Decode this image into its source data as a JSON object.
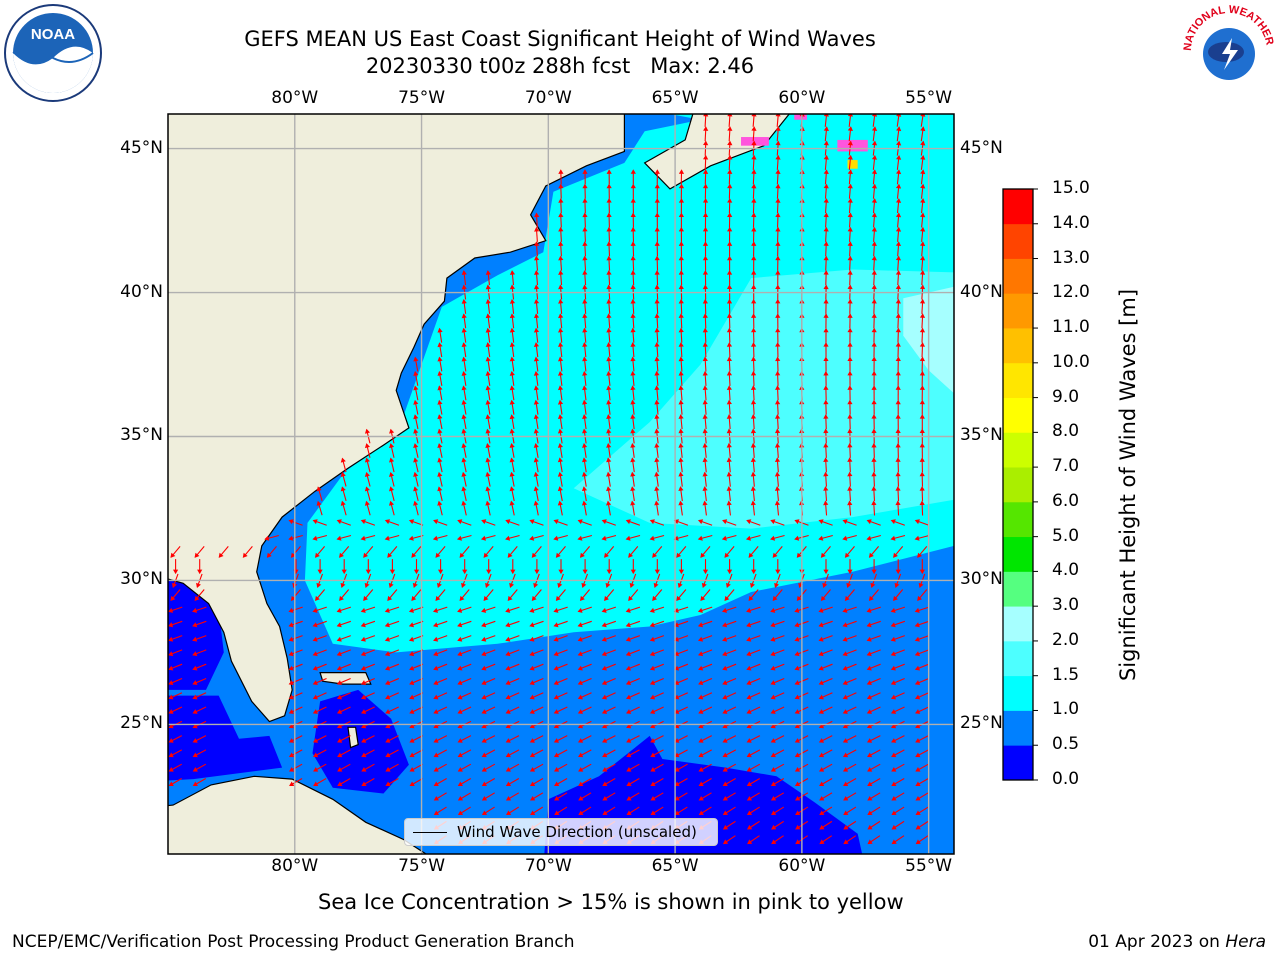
{
  "title": {
    "line1": "GEFS MEAN US East Coast Significant Height of Wind Waves",
    "line2": "20230330 t00z 288h fcst   Max: 2.46"
  },
  "map": {
    "lon_range": [
      -85,
      -54
    ],
    "lat_range": [
      20.5,
      46.2
    ],
    "lon_ticks": [
      -80,
      -75,
      -70,
      -65,
      -60,
      -55
    ],
    "lat_ticks": [
      25,
      30,
      35,
      40,
      45
    ],
    "lon_tick_labels": [
      "80°W",
      "75°W",
      "70°W",
      "65°W",
      "60°W",
      "55°W"
    ],
    "lat_tick_labels": [
      "25°N",
      "30°N",
      "35°N",
      "40°N",
      "45°N"
    ],
    "land_color": "#efeedc",
    "arrow_color": "#ff0000"
  },
  "legend": {
    "label": "Wind Wave Direction (unscaled)"
  },
  "colorbar": {
    "label": "Significant Height of Wind Waves [m]",
    "levels": [
      0.0,
      0.5,
      1.0,
      1.5,
      2.0,
      3.0,
      4.0,
      5.0,
      6.0,
      7.0,
      8.0,
      9.0,
      10.0,
      11.0,
      12.0,
      13.0,
      14.0,
      15.0
    ],
    "tick_labels": [
      "0.0",
      "0.5",
      "1.0",
      "1.5",
      "2.0",
      "3.0",
      "4.0",
      "5.0",
      "6.0",
      "7.0",
      "8.0",
      "9.0",
      "10.0",
      "11.0",
      "12.0",
      "13.0",
      "14.0",
      "15.0"
    ],
    "colors": [
      "#0000ff",
      "#0080ff",
      "#00ffff",
      "#4dffff",
      "#a6ffff",
      "#55ff80",
      "#00e600",
      "#55e600",
      "#aaee00",
      "#ccff00",
      "#ffff00",
      "#ffe600",
      "#ffc000",
      "#ff9900",
      "#ff7700",
      "#ff4400",
      "#ff0000"
    ]
  },
  "ice_note": "Sea Ice Concentration > 15% is shown in pink to yellow",
  "footer": {
    "left": "NCEP/EMC/Verification Post Processing Product Generation Branch",
    "date": "01 Apr 2023 on",
    "machine": "Hera"
  },
  "logos": {
    "noaa_text": "NOAA",
    "nws_text": "NATIONAL WEATHER SERVICE"
  }
}
